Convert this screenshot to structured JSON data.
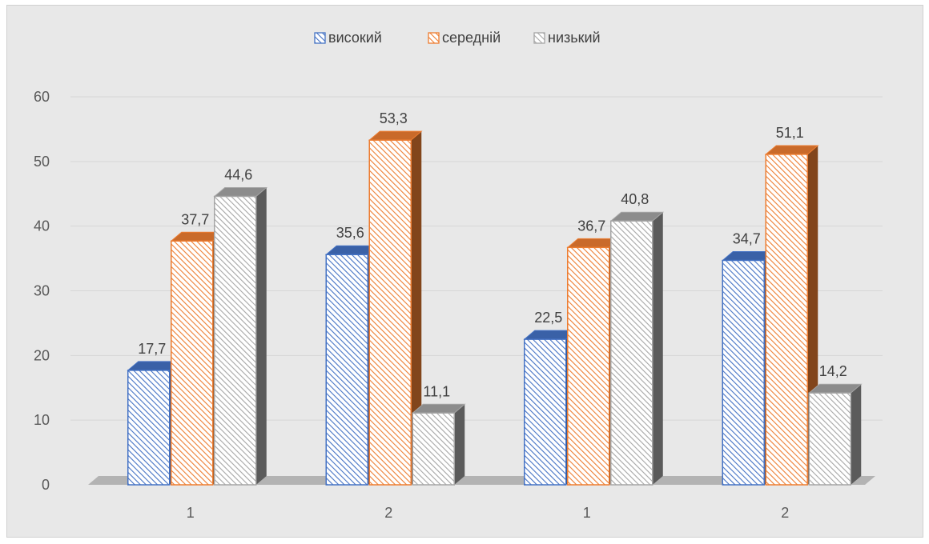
{
  "chart_data": {
    "type": "bar",
    "categories": [
      "1",
      "2",
      "1",
      "2"
    ],
    "series": [
      {
        "name": "високий",
        "values": [
          17.7,
          35.6,
          22.5,
          34.7
        ],
        "value_labels": [
          "17,7",
          "35,6",
          "22,5",
          "34,7"
        ],
        "color": "#4472c4"
      },
      {
        "name": "середній",
        "values": [
          37.7,
          53.3,
          36.7,
          51.1
        ],
        "value_labels": [
          "37,7",
          "53,3",
          "36,7",
          "51,1"
        ],
        "color": "#ed7d31"
      },
      {
        "name": "низький",
        "values": [
          44.6,
          11.1,
          40.8,
          14.2
        ],
        "value_labels": [
          "44,6",
          "11,1",
          "40,8",
          "14,2"
        ],
        "color": "#a5a5a5"
      }
    ],
    "yticks": [
      "0",
      "10",
      "20",
      "30",
      "40",
      "50",
      "60"
    ],
    "ylim": [
      0,
      60
    ],
    "title": "",
    "xlabel": "",
    "ylabel": "",
    "grid": true,
    "legend_position": "top",
    "style": "3d-hatched"
  }
}
